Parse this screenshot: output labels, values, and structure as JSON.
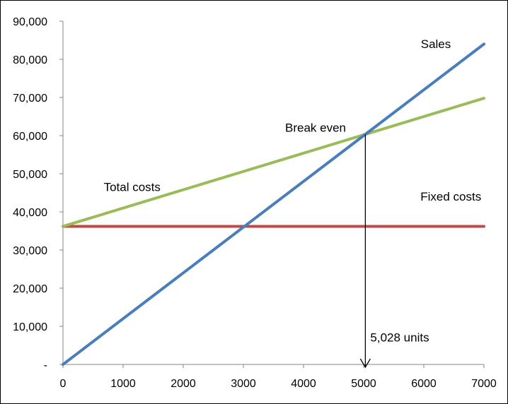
{
  "chart_data": {
    "type": "line",
    "title": "",
    "xlabel": "",
    "ylabel": "",
    "xlim": [
      0,
      7000
    ],
    "ylim": [
      0,
      90000
    ],
    "x_ticks": [
      {
        "value": 0,
        "label": "0"
      },
      {
        "value": 1000,
        "label": "1000"
      },
      {
        "value": 2000,
        "label": "2000"
      },
      {
        "value": 3000,
        "label": "3000"
      },
      {
        "value": 4000,
        "label": "4000"
      },
      {
        "value": 5000,
        "label": "5000"
      },
      {
        "value": 6000,
        "label": "6000"
      },
      {
        "value": 7000,
        "label": "7000"
      }
    ],
    "y_ticks": [
      {
        "value": 0,
        "label": "-"
      },
      {
        "value": 10000,
        "label": "10,000"
      },
      {
        "value": 20000,
        "label": "20,000"
      },
      {
        "value": 30000,
        "label": "30,000"
      },
      {
        "value": 40000,
        "label": "40,000"
      },
      {
        "value": 50000,
        "label": "50,000"
      },
      {
        "value": 60000,
        "label": "60,000"
      },
      {
        "value": 70000,
        "label": "70,000"
      },
      {
        "value": 80000,
        "label": "80,000"
      },
      {
        "value": 90000,
        "label": "90,000"
      }
    ],
    "grid": false,
    "legend": "none",
    "series": [
      {
        "name": "Sales",
        "color": "#4a7ebb",
        "x": [
          0,
          7000
        ],
        "y": [
          0,
          84000
        ]
      },
      {
        "name": "Total costs",
        "color": "#9bbb59",
        "x": [
          0,
          7000
        ],
        "y": [
          36200,
          69800
        ]
      },
      {
        "name": "Fixed costs",
        "color": "#be4b48",
        "x": [
          0,
          7000
        ],
        "y": [
          36200,
          36200
        ]
      }
    ],
    "labels": [
      {
        "text": "Sales",
        "x": 6200,
        "y": 83000,
        "anchor": "middle"
      },
      {
        "text": "Break even",
        "x": 4200,
        "y": 61000,
        "anchor": "middle"
      },
      {
        "text": "Total costs",
        "x": 1150,
        "y": 45500,
        "anchor": "middle"
      },
      {
        "text": "Fixed costs",
        "x": 6450,
        "y": 43000,
        "anchor": "middle"
      },
      {
        "text": "5,028 units",
        "x": 5600,
        "y": 6000,
        "anchor": "middle"
      }
    ],
    "break_even": {
      "x": 5028,
      "y": 60300,
      "label": "5,028 units"
    }
  }
}
